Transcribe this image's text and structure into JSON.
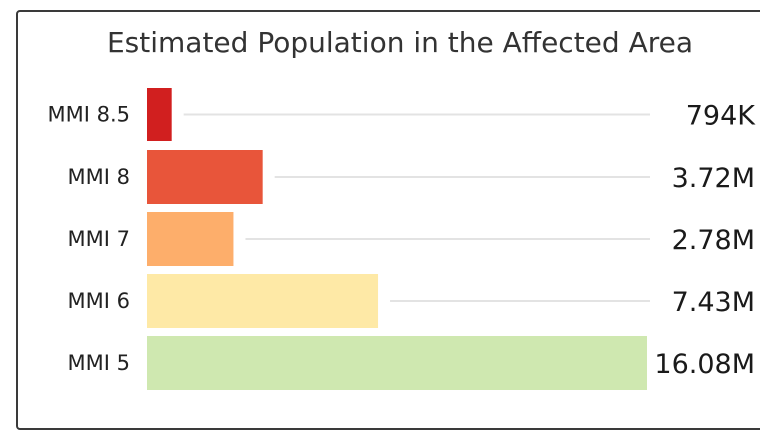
{
  "chart_data": {
    "type": "bar",
    "orientation": "horizontal",
    "title": "Estimated Population in the Affected Area",
    "categories": [
      "MMI 8.5",
      "MMI 8",
      "MMI 7",
      "MMI 6",
      "MMI 5"
    ],
    "values": [
      794000,
      3720000,
      2780000,
      7430000,
      16080000
    ],
    "value_labels": [
      "794K",
      "3.72M",
      "2.78M",
      "7.43M",
      "16.08M"
    ],
    "colors": [
      "#d11f1f",
      "#e8553a",
      "#fdae6b",
      "#fee9a6",
      "#cfe8b0"
    ],
    "xlim": [
      0,
      16080000
    ],
    "grid": false,
    "legend": "none"
  }
}
